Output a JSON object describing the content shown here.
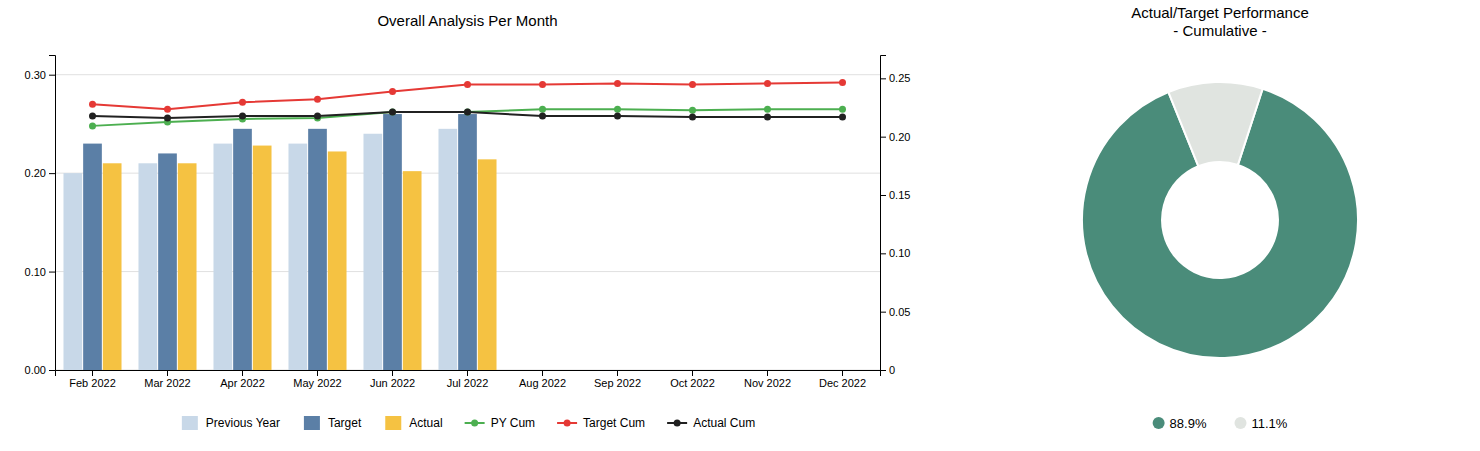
{
  "chart_data": [
    {
      "type": "bar",
      "title": "Overall Analysis Per Month",
      "categories": [
        "Feb 2022",
        "Mar 2022",
        "Apr 2022",
        "May 2022",
        "Jun 2022",
        "Jul 2022",
        "Aug 2022",
        "Sep 2022",
        "Oct 2022",
        "Nov 2022",
        "Dec 2022"
      ],
      "series": [
        {
          "name": "Previous Year",
          "type": "bar",
          "color": "#c8d8e8",
          "values": [
            0.2,
            0.21,
            0.23,
            0.23,
            0.24,
            0.245,
            null,
            null,
            null,
            null,
            null
          ]
        },
        {
          "name": "Target",
          "type": "bar",
          "color": "#5b7fa6",
          "values": [
            0.23,
            0.22,
            0.245,
            0.245,
            0.26,
            0.26,
            null,
            null,
            null,
            null,
            null
          ]
        },
        {
          "name": "Actual",
          "type": "bar",
          "color": "#f5c242",
          "values": [
            0.21,
            0.21,
            0.228,
            0.222,
            0.202,
            0.214,
            null,
            null,
            null,
            null,
            null
          ]
        },
        {
          "name": "PY Cum",
          "type": "line",
          "marker": "circle",
          "color": "#4caf50",
          "values": [
            0.248,
            0.252,
            0.255,
            0.256,
            0.262,
            0.262,
            0.265,
            0.265,
            0.264,
            0.265,
            0.265
          ]
        },
        {
          "name": "Target Cum",
          "type": "line",
          "marker": "circle",
          "color": "#e53935",
          "values": [
            0.27,
            0.265,
            0.272,
            0.275,
            0.283,
            0.29,
            0.29,
            0.291,
            0.29,
            0.291,
            0.292
          ]
        },
        {
          "name": "Actual Cum",
          "type": "line",
          "marker": "circle",
          "color": "#212121",
          "values": [
            0.258,
            0.256,
            0.258,
            0.258,
            0.262,
            0.262,
            0.258,
            0.258,
            0.257,
            0.257,
            0.257
          ]
        }
      ],
      "ylim": [
        0.0,
        0.32
      ],
      "yticks": [
        {
          "value": 0.0,
          "label": "0.00"
        },
        {
          "value": 0.1,
          "label": "0.10"
        },
        {
          "value": 0.2,
          "label": "0.20"
        },
        {
          "value": 0.3,
          "label": "0.30"
        }
      ],
      "y2lim": [
        0.0,
        0.27
      ],
      "y2ticks": [
        0,
        0.05,
        {
          "value": 0.1,
          "label": "0.10"
        },
        0.15,
        {
          "value": 0.2,
          "label": "0.20"
        },
        0.25
      ],
      "grid": true,
      "legend": "bottom"
    },
    {
      "type": "donut",
      "title": "Actual/Target Performance\n- Cumulative -",
      "categories": [
        "88.9%",
        "11.1%"
      ],
      "values": [
        88.9,
        11.1
      ],
      "colors": [
        "#4a8c7a",
        "#e0e4e0"
      ],
      "legend": "bottom"
    }
  ]
}
